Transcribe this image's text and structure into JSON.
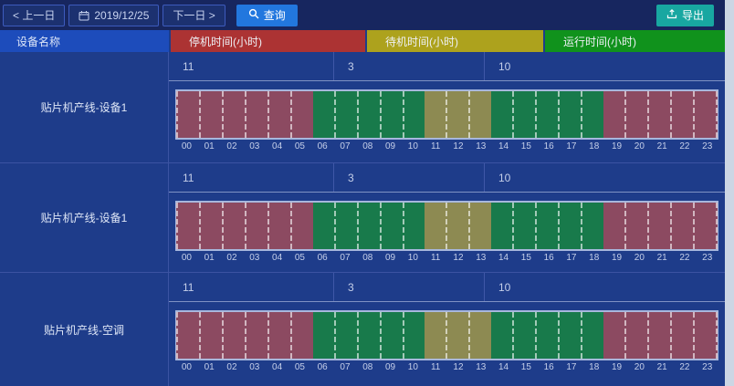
{
  "toolbar": {
    "prev_label": "< 上一日",
    "date_value": "2019/12/25",
    "next_label": "下一日 >",
    "search_label": "查询",
    "export_label": "导出"
  },
  "table": {
    "name_header": "设备名称",
    "column_headers": [
      {
        "label": "停机时间(小时)",
        "color": "#ac3333"
      },
      {
        "label": "待机时间(小时)",
        "color": "#ada21d"
      },
      {
        "label": "运行时间(小时)",
        "color": "#10921c"
      }
    ],
    "state_colors": {
      "stop": "#8c4a61",
      "run": "#187a4b",
      "standby": "#8d8a52"
    },
    "hours": [
      "00",
      "01",
      "02",
      "03",
      "04",
      "05",
      "06",
      "07",
      "08",
      "09",
      "10",
      "11",
      "12",
      "13",
      "14",
      "15",
      "16",
      "17",
      "18",
      "19",
      "20",
      "21",
      "22",
      "23"
    ],
    "rows": [
      {
        "device": "贴片机产线-设备1",
        "values": [
          "11",
          "3",
          "10"
        ],
        "segments": [
          {
            "state": "stop",
            "from": 0,
            "to": 6
          },
          {
            "state": "run",
            "from": 6,
            "to": 11
          },
          {
            "state": "standby",
            "from": 11,
            "to": 14
          },
          {
            "state": "run",
            "from": 14,
            "to": 19
          },
          {
            "state": "stop",
            "from": 19,
            "to": 24
          }
        ]
      },
      {
        "device": "贴片机产线-设备1",
        "values": [
          "11",
          "3",
          "10"
        ],
        "segments": [
          {
            "state": "stop",
            "from": 0,
            "to": 6
          },
          {
            "state": "run",
            "from": 6,
            "to": 11
          },
          {
            "state": "standby",
            "from": 11,
            "to": 14
          },
          {
            "state": "run",
            "from": 14,
            "to": 19
          },
          {
            "state": "stop",
            "from": 19,
            "to": 24
          }
        ]
      },
      {
        "device": "贴片机产线-空调",
        "values": [
          "11",
          "3",
          "10"
        ],
        "segments": [
          {
            "state": "stop",
            "from": 0,
            "to": 6
          },
          {
            "state": "run",
            "from": 6,
            "to": 11
          },
          {
            "state": "standby",
            "from": 11,
            "to": 14
          },
          {
            "state": "run",
            "from": 14,
            "to": 19
          },
          {
            "state": "stop",
            "from": 19,
            "to": 24
          }
        ]
      }
    ]
  }
}
